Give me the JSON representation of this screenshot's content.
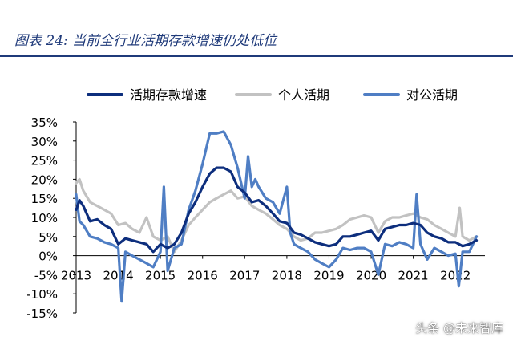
{
  "title": "图表 24:  当前全行业活期存款增速仍处低位",
  "watermark": "头条 @未来智库",
  "chart_data": {
    "type": "line",
    "title": "图表 24:  当前全行业活期存款增速仍处低位",
    "xlabel": "",
    "ylabel": "",
    "y_unit": "%",
    "ylim": [
      -15,
      35
    ],
    "yticks": [
      -15,
      -10,
      -5,
      0,
      5,
      10,
      15,
      20,
      25,
      30,
      35
    ],
    "xlim": [
      2013,
      2022.7
    ],
    "xticks": [
      2013,
      2014,
      2015,
      2016,
      2017,
      2018,
      2019,
      2020,
      2021,
      2022
    ],
    "grid": false,
    "legend_position": "top",
    "series": [
      {
        "name": "活期存款增速",
        "color": "#0d2e7d",
        "x": [
          2013.0,
          2013.08,
          2013.17,
          2013.33,
          2013.5,
          2013.67,
          2013.83,
          2014.0,
          2014.17,
          2014.33,
          2014.5,
          2014.67,
          2014.83,
          2015.0,
          2015.17,
          2015.33,
          2015.5,
          2015.67,
          2015.83,
          2016.0,
          2016.17,
          2016.33,
          2016.5,
          2016.67,
          2016.83,
          2017.0,
          2017.17,
          2017.33,
          2017.5,
          2017.67,
          2017.83,
          2018.0,
          2018.17,
          2018.33,
          2018.5,
          2018.67,
          2018.83,
          2019.0,
          2019.17,
          2019.33,
          2019.5,
          2019.67,
          2019.83,
          2020.0,
          2020.17,
          2020.33,
          2020.5,
          2020.67,
          2020.83,
          2021.0,
          2021.17,
          2021.33,
          2021.5,
          2021.67,
          2021.83,
          2022.0,
          2022.17,
          2022.33,
          2022.5
        ],
        "values": [
          12,
          14.5,
          13,
          9,
          9.5,
          8,
          7,
          3,
          4.5,
          4,
          3.5,
          3,
          1,
          3,
          2,
          3,
          6,
          11,
          14,
          18,
          21.5,
          23,
          23,
          22,
          18,
          16.5,
          14,
          14.5,
          13,
          11,
          9,
          8.5,
          6,
          5.5,
          4.5,
          3.5,
          3,
          2.5,
          3,
          5,
          5,
          5.5,
          6,
          6.5,
          4,
          7,
          7.5,
          8,
          8,
          8.5,
          8,
          6,
          5,
          4.5,
          3.5,
          3.5,
          2.5,
          3,
          4
        ]
      },
      {
        "name": "个人活期",
        "color": "#c2c2c2",
        "x": [
          2013.0,
          2013.08,
          2013.17,
          2013.33,
          2013.5,
          2013.67,
          2013.83,
          2014.0,
          2014.17,
          2014.33,
          2014.5,
          2014.67,
          2014.83,
          2015.0,
          2015.17,
          2015.33,
          2015.5,
          2015.67,
          2015.83,
          2016.0,
          2016.17,
          2016.33,
          2016.5,
          2016.67,
          2016.83,
          2017.0,
          2017.17,
          2017.33,
          2017.5,
          2017.67,
          2017.83,
          2018.0,
          2018.17,
          2018.33,
          2018.5,
          2018.67,
          2018.83,
          2019.0,
          2019.17,
          2019.33,
          2019.5,
          2019.67,
          2019.83,
          2020.0,
          2020.17,
          2020.33,
          2020.5,
          2020.67,
          2020.83,
          2021.0,
          2021.17,
          2021.33,
          2021.5,
          2021.67,
          2021.83,
          2022.0,
          2022.1,
          2022.17,
          2022.33,
          2022.5
        ],
        "values": [
          19,
          20,
          17,
          14,
          13,
          12,
          11,
          8,
          8.5,
          7,
          6,
          10,
          5,
          4,
          5,
          1,
          4,
          8,
          10,
          12,
          14,
          15,
          16,
          17,
          15,
          15.5,
          13,
          12,
          11,
          9.5,
          8,
          7,
          5,
          4,
          4.5,
          6,
          6,
          6.5,
          7,
          8,
          9.5,
          10,
          10.5,
          10,
          6,
          9,
          10,
          10,
          10.5,
          11,
          10,
          9.5,
          8,
          7,
          6,
          5,
          12.5,
          5,
          4,
          5
        ]
      },
      {
        "name": "对公活期",
        "color": "#4f7ec4",
        "x": [
          2013.0,
          2013.08,
          2013.17,
          2013.33,
          2013.5,
          2013.67,
          2013.83,
          2014.0,
          2014.08,
          2014.17,
          2014.33,
          2014.5,
          2014.67,
          2014.83,
          2015.0,
          2015.08,
          2015.17,
          2015.33,
          2015.5,
          2015.67,
          2015.83,
          2016.0,
          2016.17,
          2016.33,
          2016.5,
          2016.67,
          2016.83,
          2017.0,
          2017.08,
          2017.17,
          2017.25,
          2017.33,
          2017.5,
          2017.67,
          2017.83,
          2018.0,
          2018.08,
          2018.17,
          2018.33,
          2018.5,
          2018.67,
          2018.83,
          2019.0,
          2019.17,
          2019.33,
          2019.5,
          2019.67,
          2019.83,
          2020.0,
          2020.17,
          2020.33,
          2020.5,
          2020.67,
          2020.83,
          2021.0,
          2021.08,
          2021.17,
          2021.33,
          2021.5,
          2021.67,
          2021.83,
          2022.0,
          2022.08,
          2022.17,
          2022.33,
          2022.5
        ],
        "values": [
          16,
          9,
          8,
          5,
          4.5,
          3.5,
          3,
          2,
          -12,
          1,
          0,
          -1,
          -2,
          -3,
          1,
          18,
          -4,
          2,
          3,
          12,
          17,
          24,
          32,
          32,
          32.5,
          29,
          23,
          15,
          26,
          18,
          20,
          18,
          15,
          14,
          11,
          18,
          6,
          3,
          2,
          1,
          -1,
          -2,
          -3,
          -1,
          2,
          1.5,
          2,
          2,
          1,
          -5,
          3,
          2.5,
          3.5,
          3,
          2,
          16,
          3,
          -1,
          2,
          1,
          0,
          0.5,
          -8,
          1,
          1,
          5
        ]
      }
    ]
  }
}
